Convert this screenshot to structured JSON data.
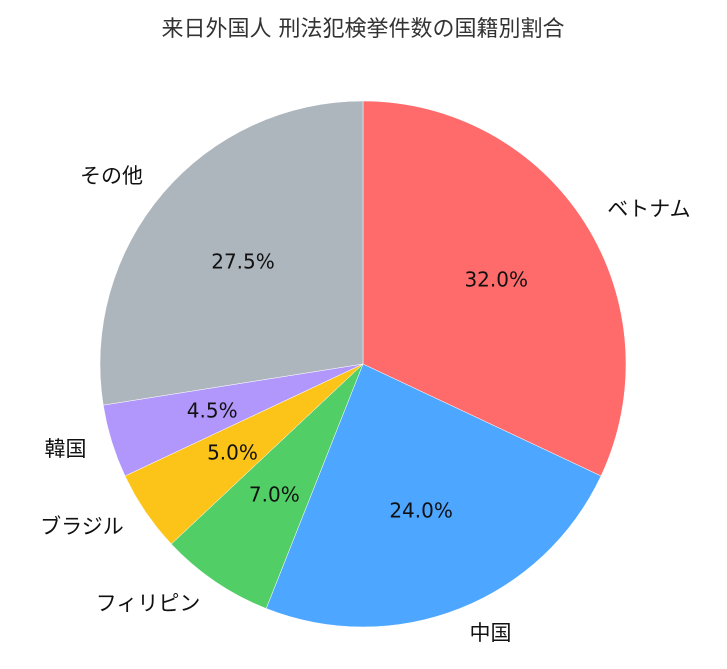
{
  "chart_data": {
    "type": "pie",
    "title": "来日外国人 刑法犯検挙件数の国籍別割合",
    "start_angle_deg": 90,
    "direction": "clockwise",
    "slices": [
      {
        "label": "ベトナム",
        "value": 32.0,
        "pct_label": "32.0%",
        "color": "#ff6b6b"
      },
      {
        "label": "中国",
        "value": 24.0,
        "pct_label": "24.0%",
        "color": "#4da6ff"
      },
      {
        "label": "フィリピン",
        "value": 7.0,
        "pct_label": "7.0%",
        "color": "#51cf66"
      },
      {
        "label": "ブラジル",
        "value": 5.0,
        "pct_label": "5.0%",
        "color": "#fcc419"
      },
      {
        "label": "韓国",
        "value": 4.5,
        "pct_label": "4.5%",
        "color": "#b197fc"
      },
      {
        "label": "その他",
        "value": 27.5,
        "pct_label": "27.5%",
        "color": "#adb5bd"
      }
    ]
  }
}
